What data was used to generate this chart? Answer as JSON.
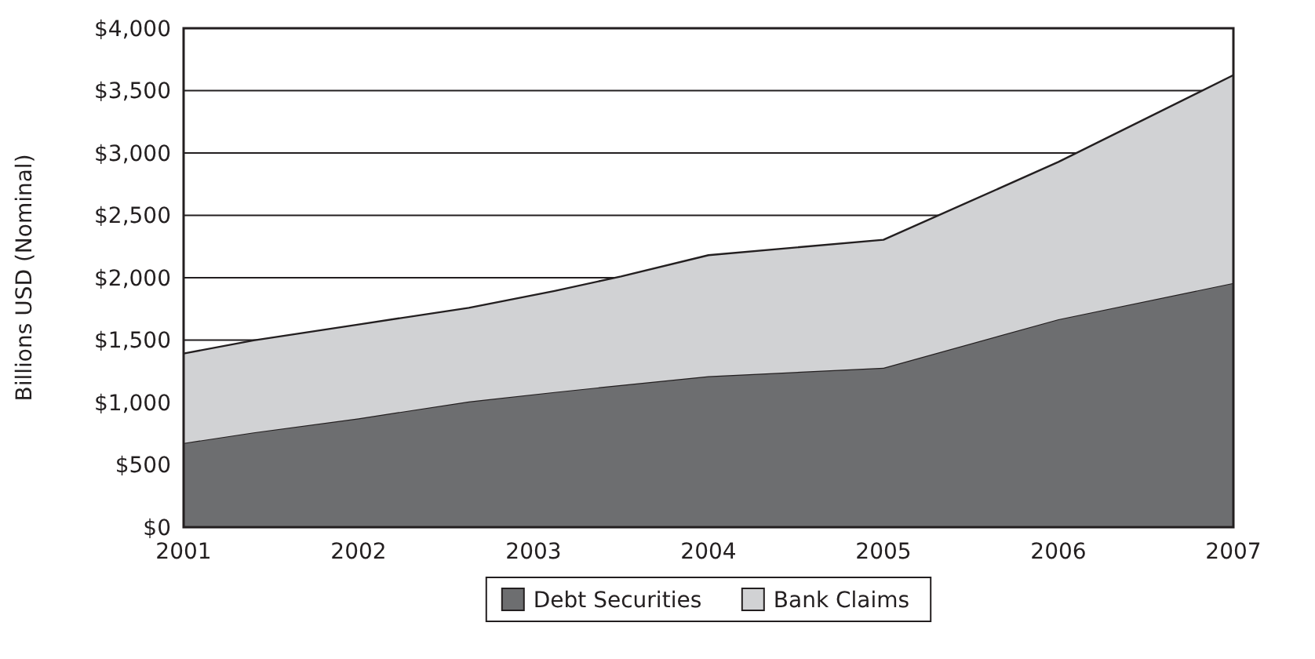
{
  "chart_data": {
    "type": "area",
    "stacked": true,
    "ylabel": "Billions USD (Nominal)",
    "x": [
      2001,
      2001.4,
      2002,
      2002.63,
      2003.12,
      2003.5,
      2004,
      2005,
      2006,
      2007
    ],
    "series": [
      {
        "name": "Debt Securities",
        "color": "#6d6e70",
        "values": [
          675,
          760,
          873,
          1008,
          1084,
          1140,
          1211,
          1278,
          1667,
          1958
        ]
      },
      {
        "name": "Bank Claims",
        "color": "#d1d2d4",
        "values": [
          717,
          738,
          752,
          751,
          810,
          870,
          970,
          1026,
          1261,
          1666
        ]
      }
    ],
    "xlim": [
      2001,
      2007
    ],
    "xticks": [
      2001,
      2002,
      2003,
      2004,
      2005,
      2006,
      2007
    ],
    "ylim": [
      0,
      4000
    ],
    "yticks": [
      {
        "value": 0,
        "label": "$0"
      },
      {
        "value": 500,
        "label": "$500"
      },
      {
        "value": 1000,
        "label": "$1,000"
      },
      {
        "value": 1500,
        "label": "$1,500"
      },
      {
        "value": 2000,
        "label": "$2,000"
      },
      {
        "value": 2500,
        "label": "$2,500"
      },
      {
        "value": 3000,
        "label": "$3,000"
      },
      {
        "value": 3500,
        "label": "$3,500"
      },
      {
        "value": 4000,
        "label": "$4,000"
      }
    ],
    "grid": "y",
    "legend": "bottom"
  }
}
